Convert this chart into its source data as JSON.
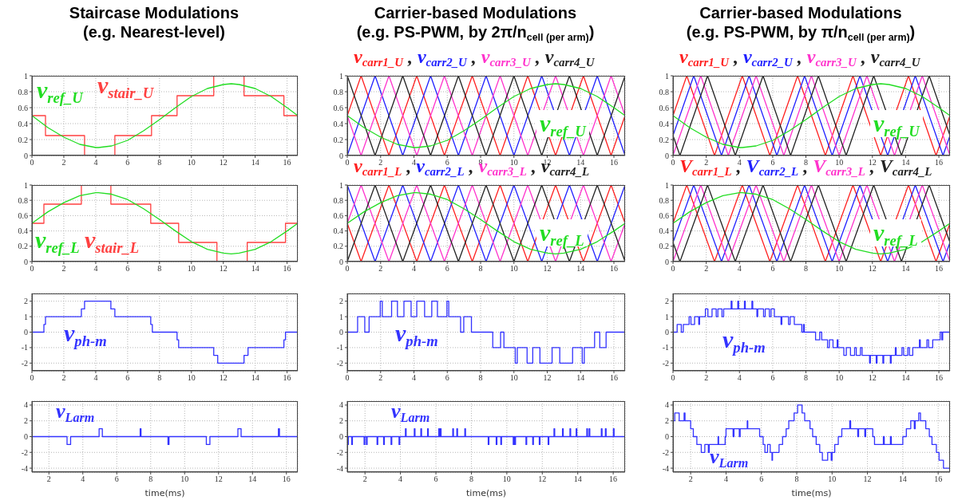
{
  "chart_data": [
    {
      "type": "line",
      "title": "Staircase Modulations",
      "subtitle": "(e.g. Nearest-level)",
      "xlim": [
        0,
        16.67
      ],
      "xticks": [
        0,
        2,
        4,
        6,
        8,
        10,
        12,
        14,
        16
      ],
      "ylim": [
        0,
        1
      ],
      "yticks": [
        0,
        0.2,
        0.4,
        0.6,
        0.8,
        1
      ],
      "grid": true,
      "legend": false,
      "series": [
        {
          "name": "v$_{stair_U}$",
          "color": "#ff4040",
          "type": "step",
          "x": [
            0,
            0.85,
            3.3,
            5.2,
            7.5,
            9.1,
            11.4,
            13.3,
            15.8,
            16.67
          ],
          "values": [
            0.5,
            0.25,
            0,
            0.25,
            0.5,
            0.75,
            1,
            0.75,
            0.5,
            0.5
          ]
        },
        {
          "name": "v$_{ref_U}$",
          "color": "#22dd22",
          "type": "line",
          "x": [
            0,
            1,
            2,
            3,
            4,
            4.17,
            5,
            6,
            7,
            8,
            9,
            10,
            11,
            12,
            12.5,
            13,
            14,
            15,
            16,
            16.67
          ],
          "values": [
            0.5,
            0.35,
            0.23,
            0.14,
            0.1,
            0.1,
            0.12,
            0.19,
            0.31,
            0.45,
            0.6,
            0.74,
            0.84,
            0.89,
            0.9,
            0.89,
            0.84,
            0.74,
            0.6,
            0.5
          ]
        }
      ]
    },
    {
      "type": "line",
      "title": "Carrier-based Modulations",
      "subtitle": "(e.g. PS-PWM, by 2π/n$_{cell (per arm)}$)",
      "annotations": [
        ",",
        ",",
        ","
      ],
      "xlim": [
        0,
        16.67
      ],
      "xticks": [
        0,
        2,
        4,
        6,
        8,
        10,
        12,
        14,
        16
      ],
      "ylim": [
        0,
        1
      ],
      "yticks": [
        0,
        0.2,
        0.4,
        0.6,
        0.8,
        1
      ],
      "grid": true,
      "legend": "top",
      "series": [
        {
          "name": "v$_{carr1_U}$",
          "color": "#ff2020",
          "x": [
            0,
            0.83,
            2.5,
            4.17,
            5.83,
            7.5,
            9.17,
            10.83,
            12.5,
            14.17,
            15.83,
            16.67
          ],
          "values": [
            0.5,
            1,
            0,
            1,
            0,
            1,
            0,
            1,
            0,
            1,
            0,
            0.5
          ]
        },
        {
          "name": "v$_{carr2_U}$",
          "color": "#2020ff",
          "x": [
            0,
            1.67,
            3.33,
            5,
            6.67,
            8.33,
            10,
            11.67,
            13.33,
            15,
            16.67
          ],
          "values": [
            0,
            1,
            0,
            1,
            0,
            1,
            0,
            1,
            0,
            1,
            0
          ]
        },
        {
          "name": "v$_{carr3_U}$",
          "color": "#ff33cc",
          "x": [
            0,
            0.83,
            2.5,
            4.17,
            5.83,
            7.5,
            9.17,
            10.83,
            12.5,
            14.17,
            15.83,
            16.67
          ],
          "values": [
            0.5,
            0,
            1,
            0,
            1,
            0,
            1,
            0,
            1,
            0,
            1,
            0.5
          ]
        },
        {
          "name": "v$_{carr4_U}$",
          "color": "#222222",
          "x": [
            0,
            1.67,
            3.33,
            5,
            6.67,
            8.33,
            10,
            11.67,
            13.33,
            15,
            16.67
          ],
          "values": [
            1,
            0,
            1,
            0,
            1,
            0,
            1,
            0,
            1,
            0,
            1
          ]
        },
        {
          "name": "v$_{ref_U}$",
          "color": "#22dd22",
          "x": [
            0,
            1,
            2,
            3,
            4,
            4.17,
            5,
            6,
            7,
            8,
            9,
            10,
            11,
            12,
            12.5,
            13,
            14,
            15,
            16,
            16.67
          ],
          "values": [
            0.5,
            0.35,
            0.23,
            0.14,
            0.1,
            0.1,
            0.12,
            0.19,
            0.31,
            0.45,
            0.6,
            0.74,
            0.84,
            0.89,
            0.9,
            0.89,
            0.84,
            0.74,
            0.6,
            0.5
          ]
        }
      ]
    },
    {
      "type": "line",
      "title": "Carrier-based Modulations",
      "subtitle": "(e.g. PS-PWM, by π/n$_{cell (per arm)}$)",
      "annotations": [
        ",",
        ",",
        ","
      ],
      "xlim": [
        0,
        16.67
      ],
      "xticks": [
        0,
        2,
        4,
        6,
        8,
        10,
        12,
        14,
        16
      ],
      "ylim": [
        0,
        1
      ],
      "yticks": [
        0,
        0.2,
        0.4,
        0.6,
        0.8,
        1
      ],
      "grid": true,
      "legend": "top",
      "series": [
        {
          "name": "v$_{carr1_U}$",
          "color": "#ff2020",
          "x": [
            0,
            0.83,
            2.5,
            4.17,
            5.83,
            7.5,
            9.17,
            10.83,
            12.5,
            14.17,
            15.83,
            16.67
          ],
          "values": [
            0.5,
            1,
            0,
            1,
            0,
            1,
            0,
            1,
            0,
            1,
            0,
            0.5
          ]
        },
        {
          "name": "v$_{carr2_U}$",
          "color": "#2020ff",
          "x": [
            0,
            1.25,
            2.92,
            4.58,
            6.25,
            7.92,
            9.58,
            11.25,
            12.92,
            14.58,
            16.25,
            16.67
          ],
          "values": [
            0.25,
            1,
            0,
            1,
            0,
            1,
            0,
            1,
            0,
            1,
            0,
            0.25
          ]
        },
        {
          "name": "v$_{carr3_U}$",
          "color": "#ff33cc",
          "x": [
            0,
            1.67,
            3.33,
            5,
            6.67,
            8.33,
            10,
            11.67,
            13.33,
            15,
            16.67
          ],
          "values": [
            0,
            1,
            0,
            1,
            0,
            1,
            0,
            1,
            0,
            1,
            0
          ]
        },
        {
          "name": "v$_{carr4_U}$",
          "color": "#222222",
          "x": [
            0,
            0.42,
            2.08,
            3.75,
            5.42,
            7.08,
            8.75,
            10.42,
            12.08,
            13.75,
            15.42,
            16.67
          ],
          "values": [
            0.25,
            0,
            1,
            0,
            1,
            0,
            1,
            0,
            1,
            0,
            1,
            0.25
          ]
        },
        {
          "name": "v$_{ref_U}$",
          "color": "#22dd22",
          "x": [
            0,
            1,
            2,
            3,
            4,
            4.17,
            5,
            6,
            7,
            8,
            9,
            10,
            11,
            12,
            12.5,
            13,
            14,
            15,
            16,
            16.67
          ],
          "values": [
            0.5,
            0.35,
            0.23,
            0.14,
            0.1,
            0.1,
            0.12,
            0.19,
            0.31,
            0.45,
            0.6,
            0.74,
            0.84,
            0.89,
            0.9,
            0.89,
            0.84,
            0.74,
            0.6,
            0.5
          ]
        }
      ]
    },
    {
      "type": "line",
      "xlim": [
        0,
        16.67
      ],
      "xticks": [
        0,
        2,
        4,
        6,
        8,
        10,
        12,
        14,
        16
      ],
      "ylim": [
        0,
        1
      ],
      "yticks": [
        0,
        0.2,
        0.4,
        0.6,
        0.8,
        1
      ],
      "grid": true,
      "legend": false,
      "series": [
        {
          "name": "v$_{stair_L}$",
          "color": "#ff4040",
          "type": "step",
          "x": [
            0,
            0.75,
            3.1,
            4.95,
            7.45,
            9.2,
            11.6,
            13.5,
            15.9,
            16.67
          ],
          "values": [
            0.5,
            0.75,
            1,
            0.75,
            0.5,
            0.25,
            0,
            0.25,
            0.5,
            0.5
          ]
        },
        {
          "name": "v$_{ref_L}$",
          "color": "#22dd22",
          "type": "line",
          "x": [
            0,
            1,
            2,
            3,
            4,
            4.17,
            5,
            6,
            7,
            8,
            9,
            10,
            11,
            12,
            12.5,
            13,
            14,
            15,
            16,
            16.67
          ],
          "values": [
            0.5,
            0.65,
            0.77,
            0.86,
            0.9,
            0.9,
            0.88,
            0.81,
            0.69,
            0.55,
            0.4,
            0.26,
            0.16,
            0.11,
            0.1,
            0.11,
            0.16,
            0.26,
            0.4,
            0.5
          ]
        }
      ]
    },
    {
      "type": "line",
      "xlim": [
        0,
        16.67
      ],
      "xticks": [
        0,
        2,
        4,
        6,
        8,
        10,
        12,
        14,
        16
      ],
      "ylim": [
        0,
        1
      ],
      "yticks": [
        0,
        0.2,
        0.4,
        0.6,
        0.8,
        1
      ],
      "grid": true,
      "legend": "top",
      "annotations": [
        ",",
        ",",
        ","
      ],
      "series": [
        {
          "name": "v$_{carr1_L}$",
          "color": "#ff2020",
          "x": [
            0,
            0.83,
            2.5,
            4.17,
            5.83,
            7.5,
            9.17,
            10.83,
            12.5,
            14.17,
            15.83,
            16.67
          ],
          "values": [
            0.5,
            0,
            1,
            0,
            1,
            0,
            1,
            0,
            1,
            0,
            1,
            0.5
          ]
        },
        {
          "name": "v$_{carr2_L}$",
          "color": "#2020ff",
          "x": [
            0,
            1.67,
            3.33,
            5,
            6.67,
            8.33,
            10,
            11.67,
            13.33,
            15,
            16.67
          ],
          "values": [
            1,
            0,
            1,
            0,
            1,
            0,
            1,
            0,
            1,
            0,
            1
          ]
        },
        {
          "name": "v$_{carr3_L}$",
          "color": "#ff33cc",
          "x": [
            0,
            0.83,
            2.5,
            4.17,
            5.83,
            7.5,
            9.17,
            10.83,
            12.5,
            14.17,
            15.83,
            16.67
          ],
          "values": [
            0.5,
            1,
            0,
            1,
            0,
            1,
            0,
            1,
            0,
            1,
            0,
            0.5
          ]
        },
        {
          "name": "v$_{carr4_L}$",
          "color": "#222222",
          "x": [
            0,
            1.67,
            3.33,
            5,
            6.67,
            8.33,
            10,
            11.67,
            13.33,
            15,
            16.67
          ],
          "values": [
            0,
            1,
            0,
            1,
            0,
            1,
            0,
            1,
            0,
            1,
            0
          ]
        },
        {
          "name": "v$_{ref_L}$",
          "color": "#22dd22",
          "x": [
            0,
            1,
            2,
            3,
            4,
            4.17,
            5,
            6,
            7,
            8,
            9,
            10,
            11,
            12,
            12.5,
            13,
            14,
            15,
            16,
            16.67
          ],
          "values": [
            0.5,
            0.65,
            0.77,
            0.86,
            0.9,
            0.9,
            0.88,
            0.81,
            0.69,
            0.55,
            0.4,
            0.26,
            0.16,
            0.11,
            0.1,
            0.11,
            0.16,
            0.26,
            0.4,
            0.5
          ]
        }
      ]
    },
    {
      "type": "line",
      "xlim": [
        0,
        16.67
      ],
      "xticks": [
        0,
        2,
        4,
        6,
        8,
        10,
        12,
        14,
        16
      ],
      "ylim": [
        0,
        1
      ],
      "yticks": [
        0,
        0.2,
        0.4,
        0.6,
        0.8,
        1
      ],
      "grid": true,
      "legend": "top",
      "annotations": [
        ",",
        ",",
        ","
      ],
      "series": [
        {
          "name": "V$_{carr1_L}$",
          "color": "#ff2020",
          "x": [
            0,
            0.83,
            2.5,
            4.17,
            5.83,
            7.5,
            9.17,
            10.83,
            12.5,
            14.17,
            15.83,
            16.67
          ],
          "values": [
            0.5,
            1,
            0,
            1,
            0,
            1,
            0,
            1,
            0,
            1,
            0,
            0.5
          ]
        },
        {
          "name": "V$_{carr2_L}$",
          "color": "#2020ff",
          "x": [
            0,
            1.25,
            2.92,
            4.58,
            6.25,
            7.92,
            9.58,
            11.25,
            12.92,
            14.58,
            16.25,
            16.67
          ],
          "values": [
            0.25,
            1,
            0,
            1,
            0,
            1,
            0,
            1,
            0,
            1,
            0,
            0.25
          ]
        },
        {
          "name": "V$_{carr3_L}$",
          "color": "#ff33cc",
          "x": [
            0,
            1.67,
            3.33,
            5,
            6.67,
            8.33,
            10,
            11.67,
            13.33,
            15,
            16.67
          ],
          "values": [
            0,
            1,
            0,
            1,
            0,
            1,
            0,
            1,
            0,
            1,
            0
          ]
        },
        {
          "name": "V$_{carr4_L}$",
          "color": "#222222",
          "x": [
            0,
            0.42,
            2.08,
            3.75,
            5.42,
            7.08,
            8.75,
            10.42,
            12.08,
            13.75,
            15.42,
            16.67
          ],
          "values": [
            0.25,
            0,
            1,
            0,
            1,
            0,
            1,
            0,
            1,
            0,
            1,
            0.25
          ]
        },
        {
          "name": "v$_{ref_L}$",
          "color": "#22dd22",
          "x": [
            0,
            1,
            2,
            3,
            4,
            4.17,
            5,
            6,
            7,
            8,
            9,
            10,
            11,
            12,
            12.5,
            13,
            14,
            15,
            16,
            16.67
          ],
          "values": [
            0.5,
            0.65,
            0.77,
            0.86,
            0.9,
            0.9,
            0.88,
            0.81,
            0.69,
            0.55,
            0.4,
            0.26,
            0.16,
            0.11,
            0.1,
            0.11,
            0.16,
            0.26,
            0.4,
            0.5
          ]
        }
      ]
    },
    {
      "type": "step",
      "xlim": [
        0,
        16.67
      ],
      "xticks": [
        0,
        2,
        4,
        6,
        8,
        10,
        12,
        14,
        16
      ],
      "ylim": [
        -2.5,
        2.5
      ],
      "yticks": [
        -2,
        -1,
        0,
        1,
        2
      ],
      "grid": true,
      "legend": false,
      "series": [
        {
          "name": "v$_{ph-m}$",
          "color": "#3333ff",
          "x": [
            0,
            0.75,
            0.85,
            3.1,
            3.3,
            4.95,
            5.2,
            7.45,
            7.55,
            9.1,
            9.2,
            11.4,
            11.65,
            13.3,
            13.55,
            15.8,
            15.9,
            16.67
          ],
          "values": [
            0,
            0.5,
            1,
            1.5,
            2,
            1.5,
            1,
            0.5,
            0,
            -0.5,
            -1,
            -1.5,
            -2,
            -1.5,
            -1,
            -0.5,
            0,
            0
          ]
        }
      ]
    },
    {
      "type": "step",
      "xlim": [
        0,
        16.67
      ],
      "xticks": [
        0,
        2,
        4,
        6,
        8,
        10,
        12,
        14,
        16
      ],
      "ylim": [
        -2.5,
        2.5
      ],
      "yticks": [
        -2,
        -1,
        0,
        1,
        2
      ],
      "grid": true,
      "legend": false,
      "series": [
        {
          "name": "v$_{ph-m}$",
          "color": "#3333ff",
          "x": [
            0,
            0.62,
            1.05,
            1.31,
            1.98,
            2.1,
            2.66,
            3.01,
            3.4,
            3.83,
            4.17,
            4.64,
            5.07,
            5.41,
            5.98,
            6.09,
            6.8,
            6.99,
            7.45,
            8.73,
            9.2,
            9.4,
            10.08,
            10.2,
            10.79,
            11.13,
            11.56,
            12.29,
            12.75,
            13.52,
            14.1,
            14.22,
            14.84,
            15.15,
            15.53,
            16.67
          ],
          "values": [
            0,
            1,
            0,
            1,
            2,
            1,
            2,
            1,
            2,
            1,
            2,
            1,
            2,
            1,
            2,
            1,
            0,
            1,
            0,
            -1,
            0,
            -1,
            -2,
            -1,
            -2,
            -1,
            -2,
            -1,
            -2,
            -1,
            -2,
            -1,
            0,
            -1,
            0,
            0
          ]
        }
      ]
    },
    {
      "type": "step",
      "xlim": [
        0,
        16.67
      ],
      "xticks": [
        0,
        2,
        4,
        6,
        8,
        10,
        12,
        14,
        16
      ],
      "ylim": [
        -2.5,
        2.5
      ],
      "yticks": [
        -2,
        -1,
        0,
        1,
        2
      ],
      "grid": true,
      "legend": false,
      "series": [
        {
          "name": "v$_{ph-m}$",
          "color": "#3333ff",
          "x": [
            0,
            0.25,
            0.5,
            0.62,
            0.97,
            1.08,
            1.3,
            1.55,
            1.6,
            1.95,
            2.1,
            2.35,
            2.6,
            2.7,
            2.95,
            3.05,
            3.5,
            3.55,
            3.9,
            3.95,
            4.3,
            4.35,
            4.75,
            4.8,
            5.05,
            5.1,
            5.45,
            5.55,
            5.8,
            5.9,
            6.1,
            6.5,
            6.55,
            6.95,
            7.05,
            7.3,
            7.75,
            7.85,
            7.9,
            8.33,
            8.58,
            8.83,
            8.95,
            9.3,
            9.41,
            9.63,
            9.88,
            9.93,
            10.28,
            10.43,
            10.68,
            10.93,
            11.03,
            11.28,
            11.38,
            11.83,
            11.88,
            12.23,
            12.28,
            12.63,
            12.68,
            13.08,
            13.13,
            13.38,
            13.43,
            13.78,
            13.88,
            14.13,
            14.23,
            14.43,
            14.83,
            14.88,
            15.28,
            15.38,
            15.63,
            16.08,
            16.18,
            16.23,
            16.67
          ],
          "values": [
            0,
            0.5,
            0,
            0.5,
            1,
            0.5,
            1,
            0.5,
            1,
            1.5,
            1,
            1.5,
            1,
            1.5,
            1,
            1.5,
            2,
            1.5,
            2,
            1.5,
            2,
            1.5,
            2,
            1.5,
            1,
            1.5,
            1,
            1.5,
            1,
            1.5,
            1,
            0.5,
            1,
            0.5,
            1,
            0.5,
            0,
            0.5,
            0,
            0,
            -0.5,
            0,
            -0.5,
            -1,
            -0.5,
            -1,
            -0.5,
            -1,
            -1.5,
            -1,
            -1.5,
            -1,
            -1.5,
            -1,
            -1.5,
            -2,
            -1.5,
            -2,
            -1.5,
            -2,
            -1.5,
            -2,
            -1.5,
            -1,
            -1.5,
            -1,
            -1.5,
            -1,
            -1.5,
            -1,
            -0.5,
            -1,
            -0.5,
            -1,
            -0.5,
            0,
            -0.5,
            0,
            0
          ]
        }
      ]
    },
    {
      "type": "step",
      "xlabel": "time(ms)",
      "xlim": [
        1,
        16.67
      ],
      "xticks": [
        2,
        4,
        6,
        8,
        10,
        12,
        14,
        16
      ],
      "ylim": [
        -4.5,
        4.5
      ],
      "yticks": [
        -4,
        -2,
        0,
        2,
        4
      ],
      "grid": true,
      "legend": false,
      "series": [
        {
          "name": "v$_{Larm}$",
          "color": "#3333ff",
          "x": [
            1,
            3.07,
            3.28,
            4.96,
            5.15,
            7.38,
            7.43,
            9.02,
            9.08,
            11.28,
            11.49,
            13.14,
            13.33,
            15.53,
            15.59,
            16.67
          ],
          "values": [
            0,
            -1,
            0,
            1,
            0,
            1,
            0,
            -1,
            0,
            -1,
            0,
            1,
            0,
            1,
            0,
            0
          ]
        }
      ]
    },
    {
      "type": "step",
      "xlabel": "time(ms)",
      "xlim": [
        1,
        16.67
      ],
      "xticks": [
        2,
        4,
        6,
        8,
        10,
        12,
        14,
        16
      ],
      "ylim": [
        -4.5,
        4.5
      ],
      "yticks": [
        -4,
        -2,
        0,
        2,
        4
      ],
      "grid": true,
      "legend": false,
      "series": [
        {
          "name": "v$_{Larm}$",
          "color": "#3333ff",
          "x": [
            1,
            1.02,
            1.06,
            1.25,
            1.29,
            1.95,
            1.99,
            2.08,
            2.12,
            2.68,
            2.72,
            3.05,
            3.09,
            3.47,
            3.51,
            3.92,
            3.96,
            4.28,
            4.32,
            4.78,
            4.82,
            5.15,
            5.19,
            5.53,
            5.57,
            6.16,
            6.2,
            6.25,
            6.29,
            6.95,
            6.99,
            7.18,
            7.22,
            7.63,
            7.67,
            8.95,
            8.99,
            9.4,
            9.44,
            9.66,
            9.7,
            10.36,
            10.4,
            10.45,
            10.49,
            11.08,
            11.12,
            11.46,
            11.5,
            11.83,
            11.87,
            12.33,
            12.37,
            12.66,
            12.7,
            13.14,
            13.18,
            13.56,
            13.6,
            13.91,
            13.95,
            14.51,
            14.55,
            14.64,
            14.68,
            15.33,
            15.37,
            15.56,
            15.6,
            16.01,
            16.05,
            16.67
          ],
          "values": [
            0,
            -1,
            0,
            -1,
            0,
            -1,
            0,
            -1,
            0,
            -1,
            0,
            -1,
            0,
            -1,
            0,
            -1,
            0,
            1,
            0,
            1,
            0,
            1,
            0,
            1,
            0,
            1,
            0,
            1,
            0,
            1,
            0,
            1,
            0,
            1,
            0,
            -1,
            0,
            -1,
            0,
            -1,
            0,
            -1,
            0,
            -1,
            0,
            -1,
            0,
            -1,
            0,
            -1,
            0,
            -1,
            0,
            1,
            0,
            1,
            0,
            1,
            0,
            1,
            0,
            1,
            0,
            1,
            0,
            1,
            0,
            1,
            0,
            1,
            0,
            0
          ]
        }
      ]
    },
    {
      "type": "step",
      "xlabel": "time(ms)",
      "xlim": [
        1,
        16.67
      ],
      "xticks": [
        2,
        4,
        6,
        8,
        10,
        12,
        14,
        16
      ],
      "ylim": [
        -4.5,
        4.5
      ],
      "yticks": [
        -4,
        -2,
        0,
        2,
        4
      ],
      "grid": true,
      "legend": false,
      "series": [
        {
          "name": "v$_{Larm}$",
          "color": "#3333ff",
          "x": [
            1,
            1.1,
            1.35,
            1.63,
            1.68,
            2,
            2.15,
            2.35,
            2.6,
            2.8,
            3,
            3.05,
            3.55,
            3.58,
            3.95,
            4,
            4.4,
            4.45,
            4.75,
            4.8,
            5.2,
            5.23,
            5.9,
            6.1,
            6.2,
            6.35,
            6.5,
            6.6,
            6.63,
            7,
            7.2,
            7.4,
            7.55,
            7.85,
            8.05,
            8.3,
            8.45,
            8.75,
            8.9,
            9.1,
            9.3,
            9.45,
            9.75,
            9.95,
            10,
            10.15,
            10.35,
            10.55,
            11,
            11.05,
            11.45,
            11.5,
            11.85,
            11.9,
            12.3,
            12.4,
            12.9,
            12.95,
            13.3,
            13.35,
            14,
            14.2,
            14.45,
            14.65,
            14.7,
            14.9,
            15,
            15.3,
            15.5,
            15.65,
            15.9,
            16.05,
            16.3,
            16.67
          ],
          "values": [
            2,
            3,
            2,
            3,
            2,
            1,
            0,
            -1,
            -2,
            -1,
            -2,
            -1,
            0,
            -1,
            0,
            1,
            0,
            1,
            0,
            1,
            2,
            1,
            0,
            -1,
            -2,
            -1,
            -2,
            -3,
            -2,
            -1,
            0,
            1,
            2,
            3,
            4,
            3,
            2,
            1,
            0,
            -1,
            -2,
            -3,
            -2,
            -3,
            -2,
            -1,
            0,
            1,
            2,
            1,
            0,
            1,
            0,
            1,
            0,
            -1,
            0,
            -1,
            0,
            -1,
            0,
            1,
            2,
            1,
            2,
            3,
            2,
            1,
            0,
            -1,
            -2,
            -3,
            -4,
            -4
          ]
        }
      ]
    }
  ]
}
